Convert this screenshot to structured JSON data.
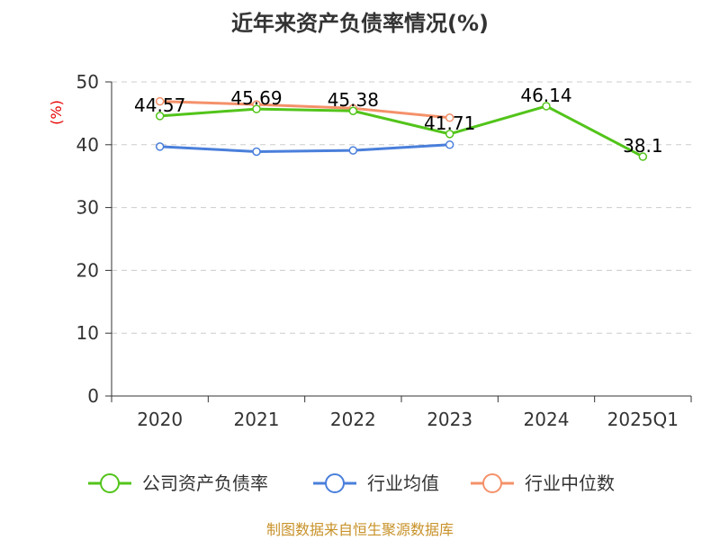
{
  "chart_data": {
    "type": "line",
    "title": "近年来资产负债率情况(%)",
    "ylabel": "(%)",
    "xlabel": "",
    "categories": [
      "2020",
      "2021",
      "2022",
      "2023",
      "2024",
      "2025Q1"
    ],
    "ylim": [
      0,
      50
    ],
    "yticks": [
      "0",
      "10",
      "20",
      "30",
      "40",
      "50"
    ],
    "grid": true,
    "legend_position": "bottom",
    "series": [
      {
        "name": "公司资产负债率",
        "values": [
          44.57,
          45.69,
          45.38,
          41.71,
          46.14,
          38.1
        ],
        "labels": [
          "44.57",
          "45.69",
          "45.38",
          "41.71",
          "46.14",
          "38.1"
        ],
        "color": "#52c41a"
      },
      {
        "name": "行业均值",
        "values": [
          39.7,
          38.9,
          39.1,
          40.0,
          null,
          null
        ],
        "color": "#4a7fdb"
      },
      {
        "name": "行业中位数",
        "values": [
          46.9,
          46.4,
          45.8,
          44.3,
          null,
          null
        ],
        "color": "#f4916a"
      }
    ],
    "source": "制图数据来自恒生聚源数据库"
  },
  "colors": {
    "axis": "#333333",
    "grid": "#cccccc",
    "unit": "#e60000",
    "source": "#c8922a"
  }
}
